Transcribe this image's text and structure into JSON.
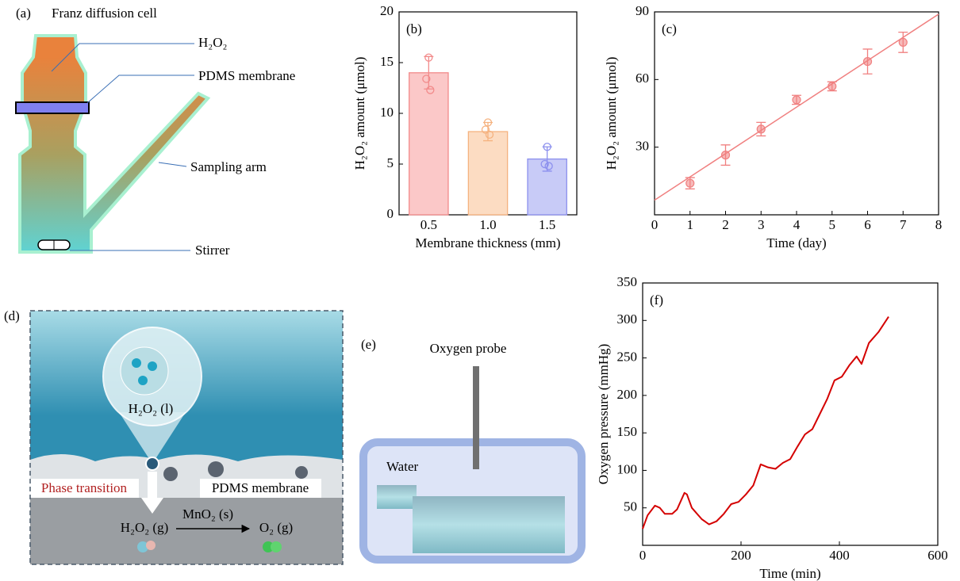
{
  "panels": {
    "a": {
      "label": "(a)",
      "title": "Franz diffusion cell",
      "h2o2": "H₂O₂",
      "membrane": "PDMS membrane",
      "arm": "Sampling arm",
      "stirrer": "Stirrer"
    },
    "d": {
      "label": "(d)",
      "liquid": "H₂O₂ (l)",
      "transition": "Phase transition",
      "membrane": "PDMS membrane",
      "gas": "H₂O₂ (g)",
      "catalyst": "MnO₂ (s)",
      "product": "O₂ (g)"
    },
    "e": {
      "label": "(e)",
      "probe": "Oxygen probe",
      "water": "Water"
    }
  },
  "chart_data": [
    {
      "type": "bar",
      "panel_label": "(b)",
      "categories": [
        "0.5",
        "1.0",
        "1.5"
      ],
      "values": [
        14,
        8.2,
        5.5
      ],
      "errors": [
        1.6,
        0.9,
        1.2
      ],
      "points": [
        [
          15.5,
          13.4,
          12.3
        ],
        [
          9.1,
          8.4,
          7.9
        ],
        [
          6.7,
          5.0,
          4.8
        ]
      ],
      "colors": [
        "#f28b8b",
        "#f5b27f",
        "#8c90ee"
      ],
      "fill_colors": [
        "#fbc8c8",
        "#fcdcc2",
        "#c8cbf7"
      ],
      "xlabel": "Membrane thickness (mm)",
      "ylabel": "H₂O₂ amount (μmol)",
      "ylim": [
        0,
        20
      ],
      "yticks": [
        0,
        5,
        10,
        15,
        20
      ]
    },
    {
      "type": "scatter",
      "panel_label": "(c)",
      "x": [
        1,
        2,
        3,
        4,
        5,
        6,
        7
      ],
      "values": [
        14,
        26.5,
        38,
        51,
        57,
        68,
        76.5
      ],
      "errors": [
        2.5,
        4.5,
        3,
        2,
        2,
        5.5,
        4.5
      ],
      "fit": {
        "x": [
          0,
          8
        ],
        "values": [
          6.5,
          89
        ]
      },
      "color": "#f08080",
      "xlabel": "Time (day)",
      "ylabel": "H₂O₂ amount (μmol)",
      "xlim": [
        0,
        8
      ],
      "ylim": [
        0,
        90
      ],
      "xticks": [
        0,
        1,
        2,
        3,
        4,
        5,
        6,
        7,
        8
      ],
      "yticks": [
        30,
        60,
        90
      ]
    },
    {
      "type": "line",
      "panel_label": "(f)",
      "x": [
        0,
        10,
        25,
        35,
        45,
        60,
        70,
        85,
        90,
        100,
        120,
        135,
        150,
        165,
        180,
        195,
        210,
        225,
        240,
        255,
        270,
        285,
        300,
        315,
        330,
        345,
        360,
        375,
        390,
        405,
        420,
        435,
        445,
        460,
        480,
        500
      ],
      "values": [
        22,
        40,
        53,
        50,
        42,
        42,
        48,
        70,
        68,
        50,
        35,
        28,
        32,
        42,
        55,
        58,
        68,
        80,
        108,
        104,
        102,
        110,
        115,
        132,
        148,
        155,
        175,
        195,
        220,
        225,
        240,
        252,
        242,
        270,
        285,
        305
      ],
      "color": "#d40000",
      "xlabel": "Time (min)",
      "ylabel": "Oxygen pressure (mmHg)",
      "xlim": [
        0,
        600
      ],
      "ylim": [
        0,
        350
      ],
      "xticks": [
        0,
        200,
        400,
        600
      ],
      "yticks": [
        50,
        100,
        150,
        200,
        250,
        300,
        350
      ]
    }
  ]
}
